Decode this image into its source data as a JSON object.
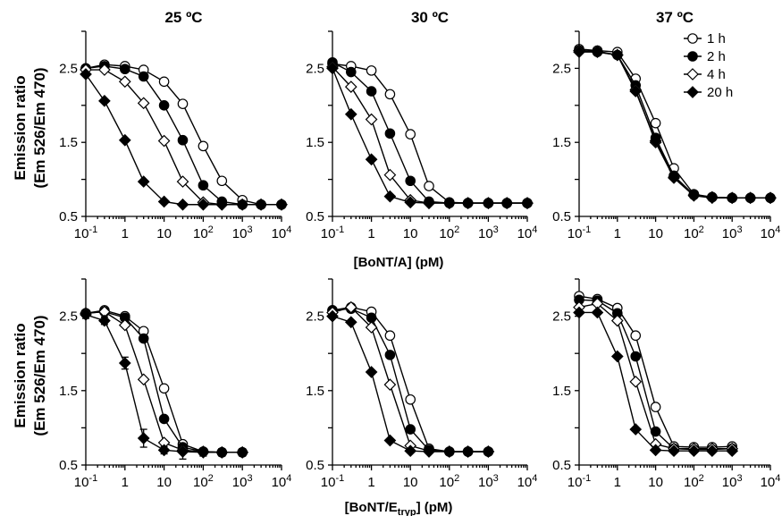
{
  "figure": {
    "xlabel_top": "[BoNT/A] (pM)",
    "xlabel_bottom_prefix": "[BoNT/E",
    "xlabel_bottom_sub": "tryp",
    "xlabel_bottom_suffix": "] (pM)",
    "ylabel_line1": "Emission ratio",
    "ylabel_line2": "(Em 526/Em 470)",
    "legend": [
      "1 h",
      "2 h",
      "4 h",
      "20 h"
    ],
    "legend_placement": "top-right of 37 ºC top panel",
    "series_markers": {
      "1 h": "open-circle",
      "2 h": "filled-circle",
      "4 h": "open-diamond",
      "20 h": "filled-diamond"
    }
  },
  "chart_data": [
    {
      "type": "line",
      "title": "25 ºC",
      "xscale": "log",
      "xlim": [
        0.1,
        10000
      ],
      "ylim": [
        0.5,
        3.0
      ],
      "yticks": [
        0.5,
        1.5,
        2.5
      ],
      "x_tick_labels": [
        "10-1",
        "1",
        "10",
        "102",
        "103",
        "104"
      ],
      "series": [
        {
          "name": "1 h",
          "x": [
            0.1,
            0.3,
            1,
            3,
            10,
            30,
            100,
            300,
            1000,
            3000,
            10000
          ],
          "y": [
            2.5,
            2.55,
            2.53,
            2.48,
            2.32,
            2.02,
            1.45,
            0.98,
            0.72,
            0.66,
            0.66
          ]
        },
        {
          "name": "2 h",
          "x": [
            0.1,
            0.3,
            1,
            3,
            10,
            30,
            100,
            300,
            1000,
            3000,
            10000
          ],
          "y": [
            2.5,
            2.53,
            2.49,
            2.39,
            2.0,
            1.53,
            0.92,
            0.7,
            0.66,
            0.66,
            0.66
          ]
        },
        {
          "name": "4 h",
          "x": [
            0.1,
            0.3,
            1,
            3,
            10,
            30,
            100,
            300,
            1000,
            3000,
            10000
          ],
          "y": [
            2.48,
            2.48,
            2.32,
            2.03,
            1.52,
            0.97,
            0.69,
            0.66,
            0.66,
            0.66,
            0.66
          ]
        },
        {
          "name": "20 h",
          "x": [
            0.1,
            0.3,
            1,
            3,
            10,
            30,
            100,
            300,
            1000,
            3000,
            10000
          ],
          "y": [
            2.42,
            2.06,
            1.53,
            0.97,
            0.7,
            0.66,
            0.66,
            0.66,
            0.66,
            0.66,
            0.66
          ]
        }
      ]
    },
    {
      "type": "line",
      "title": "30 ºC",
      "xscale": "log",
      "xlim": [
        0.1,
        10000
      ],
      "ylim": [
        0.5,
        3.0
      ],
      "yticks": [
        0.5,
        1.5,
        2.5
      ],
      "x_tick_labels": [
        "10-1",
        "1",
        "10",
        "102",
        "103",
        "104"
      ],
      "series": [
        {
          "name": "1 h",
          "x": [
            0.1,
            0.3,
            1,
            3,
            10,
            30,
            100,
            300,
            1000,
            3000,
            10000
          ],
          "y": [
            2.56,
            2.53,
            2.47,
            2.15,
            1.61,
            0.91,
            0.69,
            0.68,
            0.68,
            0.68,
            0.68
          ]
        },
        {
          "name": "2 h",
          "x": [
            0.1,
            0.3,
            1,
            3,
            10,
            30,
            100,
            300,
            1000,
            3000,
            10000
          ],
          "y": [
            2.58,
            2.45,
            2.19,
            1.62,
            0.98,
            0.7,
            0.68,
            0.68,
            0.68,
            0.68,
            0.68
          ]
        },
        {
          "name": "4 h",
          "x": [
            0.1,
            0.3,
            1,
            3,
            10,
            30,
            100,
            300,
            1000,
            3000,
            10000
          ],
          "y": [
            2.52,
            2.25,
            1.81,
            1.06,
            0.72,
            0.68,
            0.68,
            0.68,
            0.68,
            0.68,
            0.68
          ]
        },
        {
          "name": "20 h",
          "x": [
            0.1,
            0.3,
            1,
            3,
            10,
            30,
            100,
            300,
            1000,
            3000,
            10000
          ],
          "y": [
            2.5,
            1.88,
            1.27,
            0.77,
            0.69,
            0.68,
            0.68,
            0.68,
            0.68,
            0.68,
            0.68
          ]
        }
      ]
    },
    {
      "type": "line",
      "title": "37 ºC",
      "xscale": "log",
      "xlim": [
        0.1,
        10000
      ],
      "ylim": [
        0.5,
        3.0
      ],
      "yticks": [
        0.5,
        1.5,
        2.5
      ],
      "x_tick_labels": [
        "10-1",
        "1",
        "10",
        "102",
        "103",
        "104"
      ],
      "series": [
        {
          "name": "1 h",
          "x": [
            0.1,
            0.3,
            1,
            3,
            10,
            30,
            100,
            300,
            1000,
            3000,
            10000
          ],
          "y": [
            2.76,
            2.74,
            2.72,
            2.36,
            1.76,
            1.15,
            0.8,
            0.76,
            0.75,
            0.75,
            0.75
          ]
        },
        {
          "name": "2 h",
          "x": [
            0.1,
            0.3,
            1,
            3,
            10,
            30,
            100,
            300,
            1000,
            3000,
            10000
          ],
          "y": [
            2.74,
            2.72,
            2.68,
            2.27,
            1.56,
            1.05,
            0.79,
            0.76,
            0.75,
            0.75,
            0.75
          ]
        },
        {
          "name": "4 h",
          "x": [
            0.1,
            0.3,
            1,
            3,
            10,
            30,
            100,
            300,
            1000,
            3000,
            10000
          ],
          "y": [
            2.74,
            2.73,
            2.68,
            2.21,
            1.5,
            1.02,
            0.78,
            0.75,
            0.75,
            0.75,
            0.75
          ]
        },
        {
          "name": "20 h",
          "x": [
            0.1,
            0.3,
            1,
            3,
            10,
            30,
            100,
            300,
            1000,
            3000,
            10000
          ],
          "y": [
            2.72,
            2.72,
            2.68,
            2.19,
            1.52,
            1.03,
            0.79,
            0.76,
            0.75,
            0.75,
            0.75
          ]
        }
      ]
    },
    {
      "type": "line",
      "title": "",
      "xscale": "log",
      "xlim": [
        0.1,
        10000
      ],
      "ylim": [
        0.5,
        3.0
      ],
      "yticks": [
        0.5,
        1.5,
        2.5
      ],
      "x_tick_labels": [
        "10-1",
        "1",
        "10",
        "102",
        "103",
        "104"
      ],
      "series": [
        {
          "name": "1 h",
          "x": [
            0.1,
            0.3,
            1,
            3,
            10,
            30,
            100,
            300,
            1000
          ],
          "y": [
            2.54,
            2.58,
            2.5,
            2.3,
            1.53,
            0.78,
            0.68,
            0.67,
            0.67
          ]
        },
        {
          "name": "2 h",
          "x": [
            0.1,
            0.3,
            1,
            3,
            10,
            30,
            100,
            300,
            1000
          ],
          "y": [
            2.54,
            2.56,
            2.48,
            2.2,
            1.12,
            0.74,
            0.68,
            0.67,
            0.67
          ]
        },
        {
          "name": "4 h",
          "x": [
            0.1,
            0.3,
            1,
            3,
            10,
            30,
            100,
            300,
            1000
          ],
          "y": [
            2.54,
            2.56,
            2.38,
            1.65,
            0.8,
            0.7,
            0.68,
            0.67,
            0.67
          ]
        },
        {
          "name": "20 h",
          "x": [
            0.1,
            0.3,
            1,
            3,
            10,
            30,
            100,
            300,
            1000
          ],
          "y": [
            2.52,
            2.44,
            1.87,
            0.86,
            0.7,
            0.68,
            0.67,
            0.67,
            0.67
          ],
          "error": [
            0.05,
            0.05,
            0.08,
            0.12,
            0.05,
            0.1,
            0.05,
            0.05,
            0.05
          ]
        }
      ]
    },
    {
      "type": "line",
      "title": "",
      "xscale": "log",
      "xlim": [
        0.1,
        10000
      ],
      "ylim": [
        0.5,
        3.0
      ],
      "yticks": [
        0.5,
        1.5,
        2.5
      ],
      "x_tick_labels": [
        "10-1",
        "1",
        "10",
        "102",
        "103",
        "104"
      ],
      "series": [
        {
          "name": "1 h",
          "x": [
            0.1,
            0.3,
            1,
            3,
            10,
            30,
            100,
            300,
            1000
          ],
          "y": [
            2.58,
            2.62,
            2.56,
            2.24,
            1.38,
            0.72,
            0.68,
            0.68,
            0.68
          ]
        },
        {
          "name": "2 h",
          "x": [
            0.1,
            0.3,
            1,
            3,
            10,
            30,
            100,
            300,
            1000
          ],
          "y": [
            2.58,
            2.6,
            2.48,
            1.98,
            0.98,
            0.7,
            0.68,
            0.68,
            0.68
          ]
        },
        {
          "name": "4 h",
          "x": [
            0.1,
            0.3,
            1,
            3,
            10,
            30,
            100,
            300,
            1000
          ],
          "y": [
            2.55,
            2.62,
            2.35,
            1.58,
            0.76,
            0.69,
            0.68,
            0.68,
            0.68
          ]
        },
        {
          "name": "20 h",
          "x": [
            0.1,
            0.3,
            1,
            3,
            10,
            30,
            100,
            300,
            1000
          ],
          "y": [
            2.5,
            2.42,
            1.75,
            0.83,
            0.69,
            0.68,
            0.68,
            0.68,
            0.68
          ]
        }
      ]
    },
    {
      "type": "line",
      "title": "",
      "xscale": "log",
      "xlim": [
        0.1,
        10000
      ],
      "ylim": [
        0.5,
        3.0
      ],
      "yticks": [
        0.5,
        1.5,
        2.5
      ],
      "x_tick_labels": [
        "10-1",
        "1",
        "10",
        "102",
        "103",
        "104"
      ],
      "series": [
        {
          "name": "1 h",
          "x": [
            0.1,
            0.3,
            1,
            3,
            10,
            30,
            100,
            300,
            1000
          ],
          "y": [
            2.77,
            2.73,
            2.61,
            2.24,
            1.28,
            0.75,
            0.74,
            0.74,
            0.75
          ]
        },
        {
          "name": "2 h",
          "x": [
            0.1,
            0.3,
            1,
            3,
            10,
            30,
            100,
            300,
            1000
          ],
          "y": [
            2.72,
            2.71,
            2.54,
            1.96,
            0.95,
            0.72,
            0.71,
            0.71,
            0.72
          ]
        },
        {
          "name": "4 h",
          "x": [
            0.1,
            0.3,
            1,
            3,
            10,
            30,
            100,
            300,
            1000
          ],
          "y": [
            2.62,
            2.67,
            2.44,
            1.62,
            0.78,
            0.72,
            0.72,
            0.72,
            0.72
          ]
        },
        {
          "name": "20 h",
          "x": [
            0.1,
            0.3,
            1,
            3,
            10,
            30,
            100,
            300,
            1000
          ],
          "y": [
            2.55,
            2.55,
            1.96,
            0.98,
            0.7,
            0.69,
            0.69,
            0.69,
            0.69
          ]
        }
      ]
    }
  ]
}
